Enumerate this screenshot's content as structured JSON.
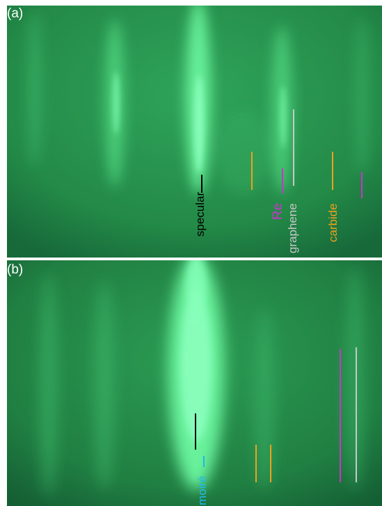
{
  "panels": [
    {
      "id": "a",
      "label": "(a)"
    },
    {
      "id": "b",
      "label": "(b)"
    }
  ],
  "annotations": {
    "specular": "specular",
    "re": "Re",
    "graphene": "graphene",
    "carbide": "carbide",
    "moire": "moiré"
  },
  "colors": {
    "background_green": "#2a9850",
    "streak_green": "#5cff99",
    "specular_marker": "#000000",
    "re_marker": "#cc33cc",
    "graphene_marker": "#c8c8c8",
    "carbide_marker": "#f0a020",
    "moire_marker": "#20b8f0"
  }
}
